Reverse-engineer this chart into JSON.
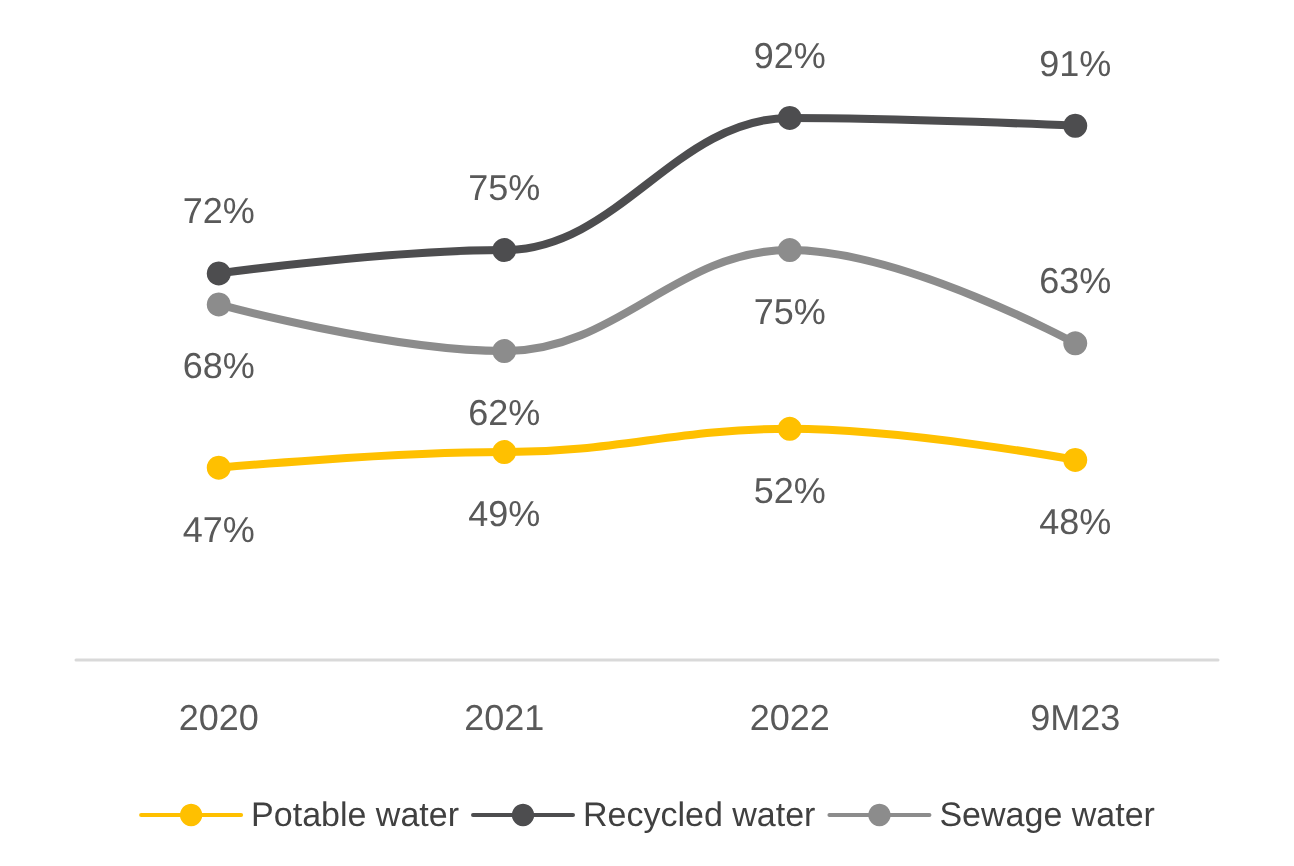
{
  "chart_data": {
    "type": "line",
    "categories": [
      "2020",
      "2021",
      "2022",
      "9M23"
    ],
    "series": [
      {
        "name": "Potable water",
        "color": "#ffc000",
        "values": [
          47,
          49,
          52,
          48
        ],
        "value_labels": [
          "47%",
          "49%",
          "52%",
          "48%"
        ]
      },
      {
        "name": "Recycled water",
        "color": "#4d4d4f",
        "values": [
          72,
          75,
          92,
          91
        ],
        "value_labels": [
          "72%",
          "75%",
          "92%",
          "91%"
        ]
      },
      {
        "name": "Sewage water",
        "color": "#8c8c8c",
        "values": [
          68,
          62,
          75,
          63
        ],
        "value_labels": [
          "68%",
          "62%",
          "75%",
          "63%"
        ]
      }
    ],
    "marker": "circle",
    "line_style": "solid",
    "grid": false,
    "legend": "bottom"
  }
}
